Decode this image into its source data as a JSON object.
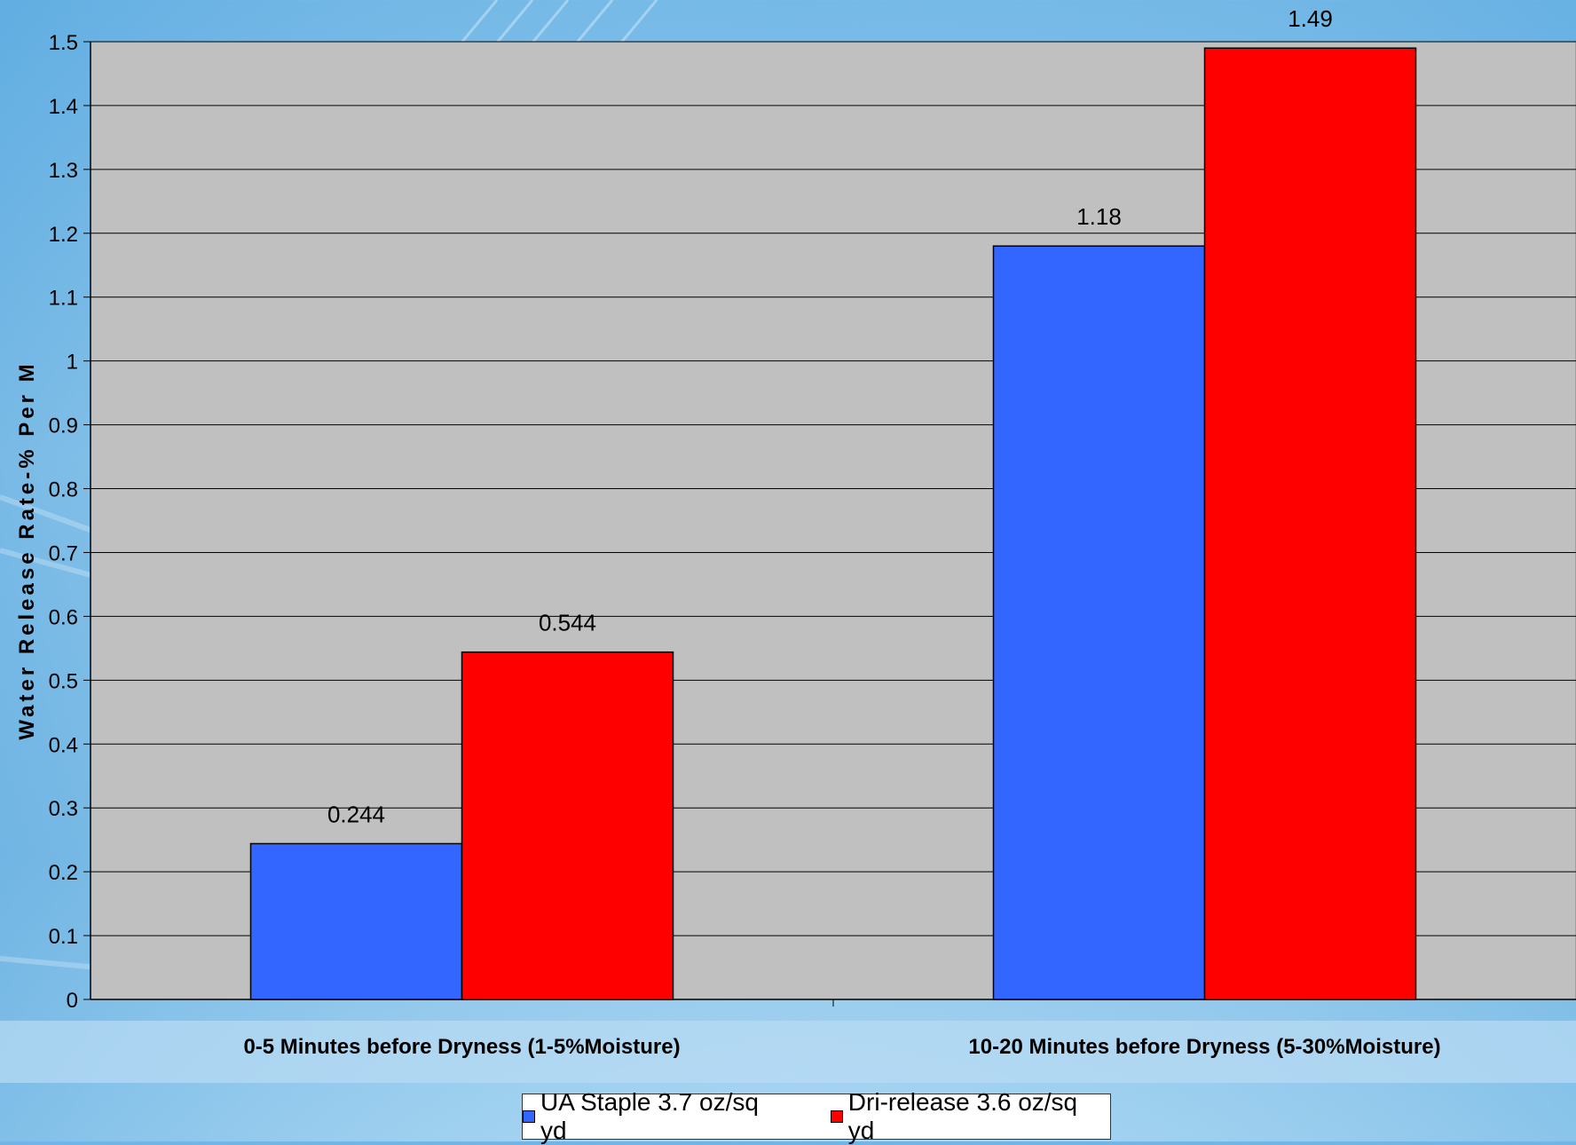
{
  "chart_data": {
    "type": "bar",
    "title": "",
    "xlabel": "",
    "ylabel": "Water Release Rate-% Per M",
    "ylim": [
      0,
      1.5
    ],
    "y_ticks": [
      "0",
      "0.1",
      "0.2",
      "0.3",
      "0.4",
      "0.5",
      "0.6",
      "0.7",
      "0.8",
      "0.9",
      "1",
      "1.1",
      "1.2",
      "1.3",
      "1.4",
      "1.5"
    ],
    "y_tick_values": [
      0,
      0.1,
      0.2,
      0.3,
      0.4,
      0.5,
      0.6,
      0.7,
      0.8,
      0.9,
      1.0,
      1.1,
      1.2,
      1.3,
      1.4,
      1.5
    ],
    "categories": [
      "0-5 Minutes before Dryness (1-5%Moisture)",
      "10-20 Minutes before Dryness (5-30%Moisture)"
    ],
    "series": [
      {
        "name": "UA Staple 3.7 oz/sq yd",
        "color": "#3366ff",
        "values": [
          0.244,
          1.18
        ],
        "labels": [
          "0.244",
          "1.18"
        ]
      },
      {
        "name": "Dri-release 3.6 oz/sq yd",
        "color": "#ff0000",
        "values": [
          0.544,
          1.49
        ],
        "labels": [
          "0.544",
          "1.49"
        ]
      }
    ],
    "grid": true,
    "plot_background": "#c0c0c0",
    "legend_position": "bottom"
  }
}
